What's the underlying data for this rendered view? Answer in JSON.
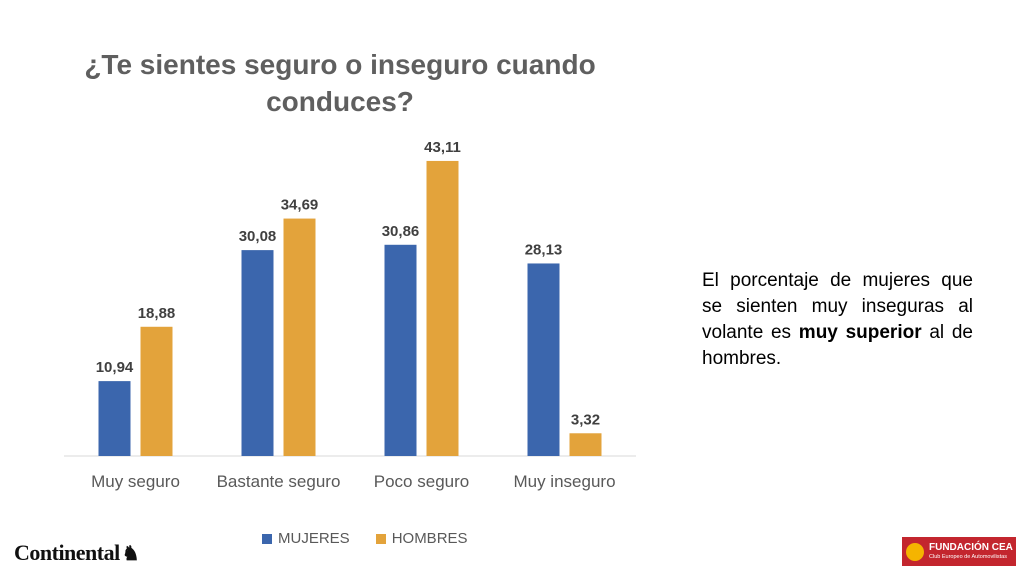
{
  "chart_data": {
    "type": "bar",
    "title": "¿Te sientes seguro o inseguro cuando conduces?",
    "categories": [
      "Muy seguro",
      "Bastante seguro",
      "Poco seguro",
      "Muy inseguro"
    ],
    "series": [
      {
        "name": "MUJERES",
        "color": "#3b66ad",
        "values": [
          10.94,
          30.08,
          30.86,
          28.13
        ],
        "labels": [
          "10,94",
          "30,08",
          "30,86",
          "28,13"
        ]
      },
      {
        "name": "HOMBRES",
        "color": "#e3a33b",
        "values": [
          18.88,
          34.69,
          43.11,
          3.32
        ],
        "labels": [
          "18,88",
          "34,69",
          "43,11",
          "3,32"
        ]
      }
    ],
    "ylim": [
      0,
      45
    ],
    "grid": false,
    "legend_position": "bottom"
  },
  "note": {
    "prefix": "El porcentaje de mujeres que se sienten muy inseguras al volante es ",
    "emphasis": "muy superior",
    "suffix": " al de hombres."
  },
  "logos": {
    "left": "Continental",
    "right_title": "FUNDACIÓN CEA",
    "right_subtitle": "Club Europeo de Automovilistas"
  }
}
